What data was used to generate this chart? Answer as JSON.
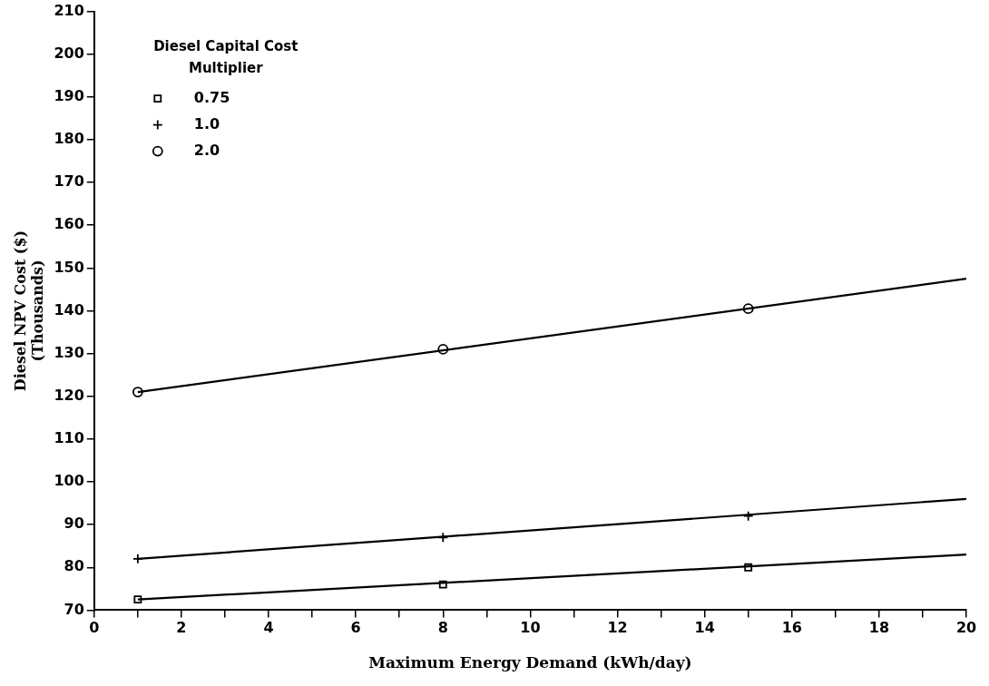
{
  "chart_data": {
    "type": "scatter",
    "xlabel": "Maximum Energy Demand (kWh/day)",
    "ylabel": "Diesel NPV Cost ($)\n(Thousands)",
    "legend_title": "Diesel Capital Cost Multiplier",
    "legend": "top left",
    "grid": false,
    "series": [
      {
        "name": "0.75",
        "color": "#000000",
        "marker": "square",
        "x": [
          1,
          8,
          15
        ],
        "values": [
          72.5,
          76,
          80
        ]
      },
      {
        "name": "1.0",
        "color": "#000000",
        "marker": "cross",
        "x": [
          1,
          8,
          15
        ],
        "values": [
          82,
          87,
          92
        ]
      },
      {
        "name": "2.0",
        "color": "#000000",
        "marker": "circle",
        "x": [
          1,
          8,
          15
        ],
        "values": [
          121,
          131,
          140.5
        ]
      },
      {
        "type": "line",
        "color": "#000000",
        "marker": "none",
        "line_style": "solid",
        "x": [
          1,
          20
        ],
        "values": [
          72.5,
          83
        ]
      },
      {
        "type": "line",
        "color": "#000000",
        "marker": "none",
        "line_style": "solid",
        "x": [
          1,
          20
        ],
        "values": [
          82,
          96
        ]
      },
      {
        "type": "line",
        "color": "#000000",
        "marker": "none",
        "line_style": "solid",
        "x": [
          1,
          20
        ],
        "values": [
          121,
          147.5
        ]
      }
    ],
    "xlim": [
      0,
      20
    ],
    "xticks": [
      0,
      {
        "value": 1,
        "label": null
      },
      2,
      {
        "value": 3,
        "label": null
      },
      4,
      {
        "value": 5,
        "label": null
      },
      6,
      {
        "value": 7,
        "label": null
      },
      8,
      {
        "value": 9,
        "label": null
      },
      10,
      {
        "value": 11,
        "label": null
      },
      12,
      {
        "value": 13,
        "label": null
      },
      14,
      {
        "value": 15,
        "label": null
      },
      16,
      {
        "value": 17,
        "label": null
      },
      18,
      {
        "value": 19,
        "label": null
      },
      20
    ],
    "ylim": [
      70,
      210
    ],
    "yticks": [
      70,
      80,
      90,
      100,
      110,
      120,
      130,
      140,
      150,
      160,
      170,
      180,
      190,
      200,
      210
    ]
  }
}
